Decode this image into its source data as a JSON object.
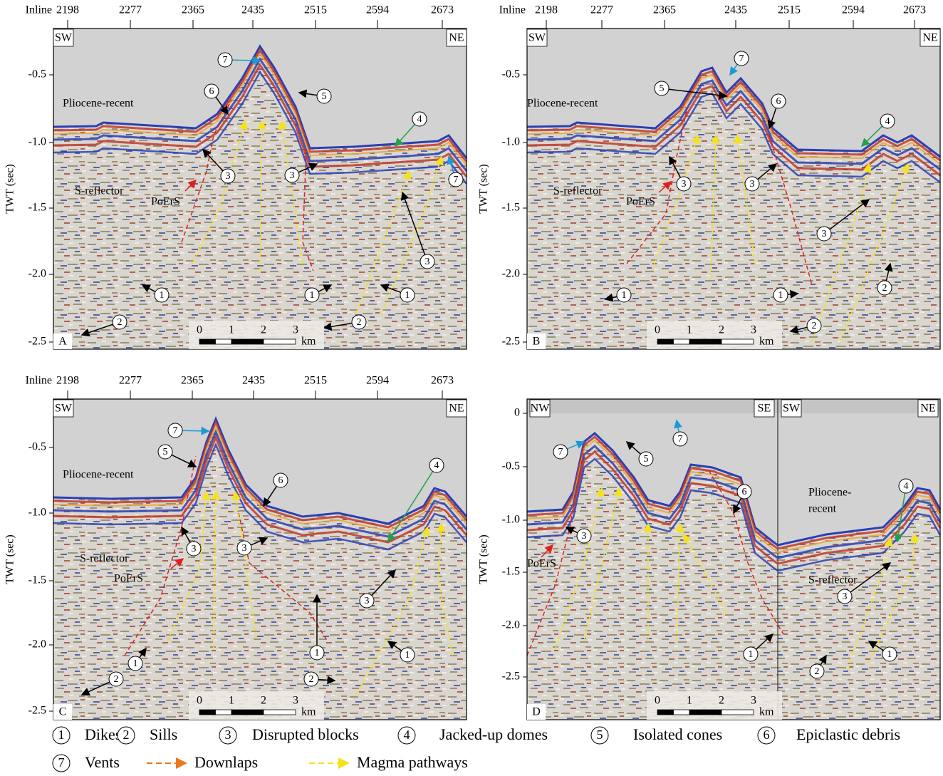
{
  "panels": [
    {
      "letter": "A",
      "corners": [
        "SW",
        "NE"
      ],
      "inline": {
        "label": "Inline",
        "ticks": [
          "2198",
          "2277",
          "2365",
          "2435",
          "2515",
          "2594",
          "2673"
        ]
      },
      "twt": {
        "label": "TWT (sec)",
        "ticks": [
          "-0.5",
          "-1.0",
          "-1.5",
          "-2.0",
          "-2.5"
        ]
      },
      "labels": [
        "Pliocene-recent",
        "S-reflector",
        "PoErS"
      ],
      "markers": [
        "7",
        "6",
        "5",
        "4",
        "3",
        "3",
        "7",
        "3",
        "1",
        "1",
        "1",
        "2",
        "2"
      ]
    },
    {
      "letter": "B",
      "corners": [
        "SW",
        "NE"
      ],
      "inline": {
        "label": "Inline",
        "ticks": [
          "2198",
          "2277",
          "2365",
          "2435",
          "2515",
          "2594",
          "2673"
        ]
      },
      "twt": {
        "label": "TWT (sec)",
        "ticks": [
          "-0.5",
          "-1.0",
          "-1.5",
          "-2.0",
          "-2.5"
        ]
      },
      "labels": [
        "Pliocene-recent",
        "S-reflector",
        "PoErS"
      ],
      "markers": [
        "7",
        "5",
        "6",
        "4",
        "3",
        "3",
        "3",
        "2",
        "1",
        "1",
        "2"
      ]
    },
    {
      "letter": "C",
      "corners": [
        "SW",
        "NE"
      ],
      "inline": {
        "label": "Inline",
        "ticks": [
          "2198",
          "2277",
          "2365",
          "2435",
          "2515",
          "2594",
          "2673"
        ]
      },
      "twt": {
        "label": "TWT (sec)",
        "ticks": [
          "-0.5",
          "-1.0",
          "-1.5",
          "-2.0",
          "-2.5"
        ]
      },
      "labels": [
        "Pliocene-recent",
        "S-reflector",
        "PoErS"
      ],
      "markers": [
        "7",
        "5",
        "6",
        "4",
        "3",
        "3",
        "3",
        "1",
        "2",
        "1",
        "2",
        "1"
      ]
    },
    {
      "letter": "D",
      "corners": [
        "NW",
        "SE",
        "SW",
        "NE"
      ],
      "twt": {
        "label": "TWT (sec)",
        "ticks": [
          "0",
          "-0.5",
          "-1.0",
          "-1.5",
          "-2.0",
          "-2.5"
        ]
      },
      "labels": [
        "Pliocene-",
        "recent",
        "S-reflector",
        "PoErS"
      ],
      "markers": [
        "7",
        "7",
        "5",
        "6",
        "3",
        "4",
        "3",
        "1",
        "2",
        "1"
      ]
    }
  ],
  "scale": {
    "ticks": [
      "0",
      "1",
      "2",
      "3"
    ],
    "unit": "km"
  },
  "legend": [
    {
      "symbol": "1",
      "text": "Dikes"
    },
    {
      "symbol": "2",
      "text": "Sills"
    },
    {
      "symbol": "3",
      "text": "Disrupted blocks"
    },
    {
      "symbol": "4",
      "text": "Jacked-up domes"
    },
    {
      "symbol": "5",
      "text": "Isolated cones"
    },
    {
      "symbol": "6",
      "text": "Epiclastic debris"
    },
    {
      "symbol": "7",
      "text": "Vents"
    },
    {
      "text": "Downlaps"
    },
    {
      "text": "Magma pathways"
    }
  ]
}
